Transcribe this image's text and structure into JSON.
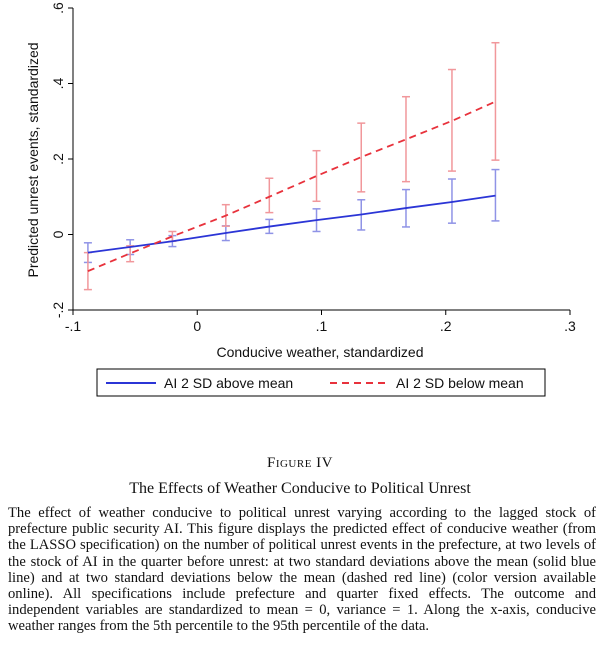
{
  "chart_data": {
    "type": "line",
    "xlabel": "Conducive weather, standardized",
    "ylabel": "Predicted unrest events, standardized",
    "xlim": [
      -0.1,
      0.3
    ],
    "ylim": [
      -0.2,
      0.6
    ],
    "x_ticks": [
      -0.1,
      0,
      0.1,
      0.2,
      0.3
    ],
    "x_tick_labels": [
      "-.1",
      "0",
      ".1",
      ".2",
      ".3"
    ],
    "y_ticks": [
      -0.2,
      0,
      0.2,
      0.4,
      0.6
    ],
    "y_tick_labels": [
      "-.2",
      "0",
      ".2",
      ".4",
      ".6"
    ],
    "x": [
      -0.088,
      -0.054,
      -0.02,
      0.023,
      0.058,
      0.096,
      0.132,
      0.168,
      0.205,
      0.24
    ],
    "series": [
      {
        "name": "AI 2 SD above mean",
        "color": "#2b35d6",
        "style": "solid",
        "values": [
          -0.048,
          -0.033,
          -0.018,
          0.004,
          0.021,
          0.038,
          0.053,
          0.07,
          0.086,
          0.103
        ],
        "ci_low": [
          -0.074,
          -0.053,
          -0.032,
          -0.016,
          0.003,
          0.008,
          0.012,
          0.02,
          0.03,
          0.036
        ],
        "ci_high": [
          -0.022,
          -0.014,
          -0.003,
          0.023,
          0.04,
          0.068,
          0.092,
          0.119,
          0.147,
          0.172
        ]
      },
      {
        "name": "AI 2 SD below mean",
        "color": "#e8323c",
        "style": "dashed",
        "values": [
          -0.097,
          -0.05,
          -0.005,
          0.05,
          0.1,
          0.155,
          0.205,
          0.252,
          0.301,
          0.352
        ],
        "ci_low": [
          -0.146,
          -0.072,
          -0.018,
          0.022,
          0.058,
          0.088,
          0.113,
          0.14,
          0.168,
          0.197
        ],
        "ci_high": [
          -0.048,
          -0.03,
          0.008,
          0.079,
          0.149,
          0.222,
          0.295,
          0.365,
          0.437,
          0.508
        ]
      }
    ],
    "legend": "bottom"
  },
  "caption": {
    "figure_label": "Figure IV",
    "title": "The Effects of Weather Conducive to Political Unrest",
    "body": "The effect of weather conducive to political unrest varying according to the lagged stock of prefecture public security AI. This figure displays the predicted effect of conducive weather (from the LASSO specification) on the number of political unrest events in the prefecture, at two levels of the stock of AI in the quarter before unrest: at two standard deviations above the mean (solid blue line) and at two standard deviations below the mean (dashed red line) (color version available online). All specifications include prefecture and quarter fixed effects. The outcome and independent variables are standardized to mean = 0, variance = 1. Along the x-axis, conducive weather ranges from the 5th percentile to the 95th percentile of the data."
  }
}
